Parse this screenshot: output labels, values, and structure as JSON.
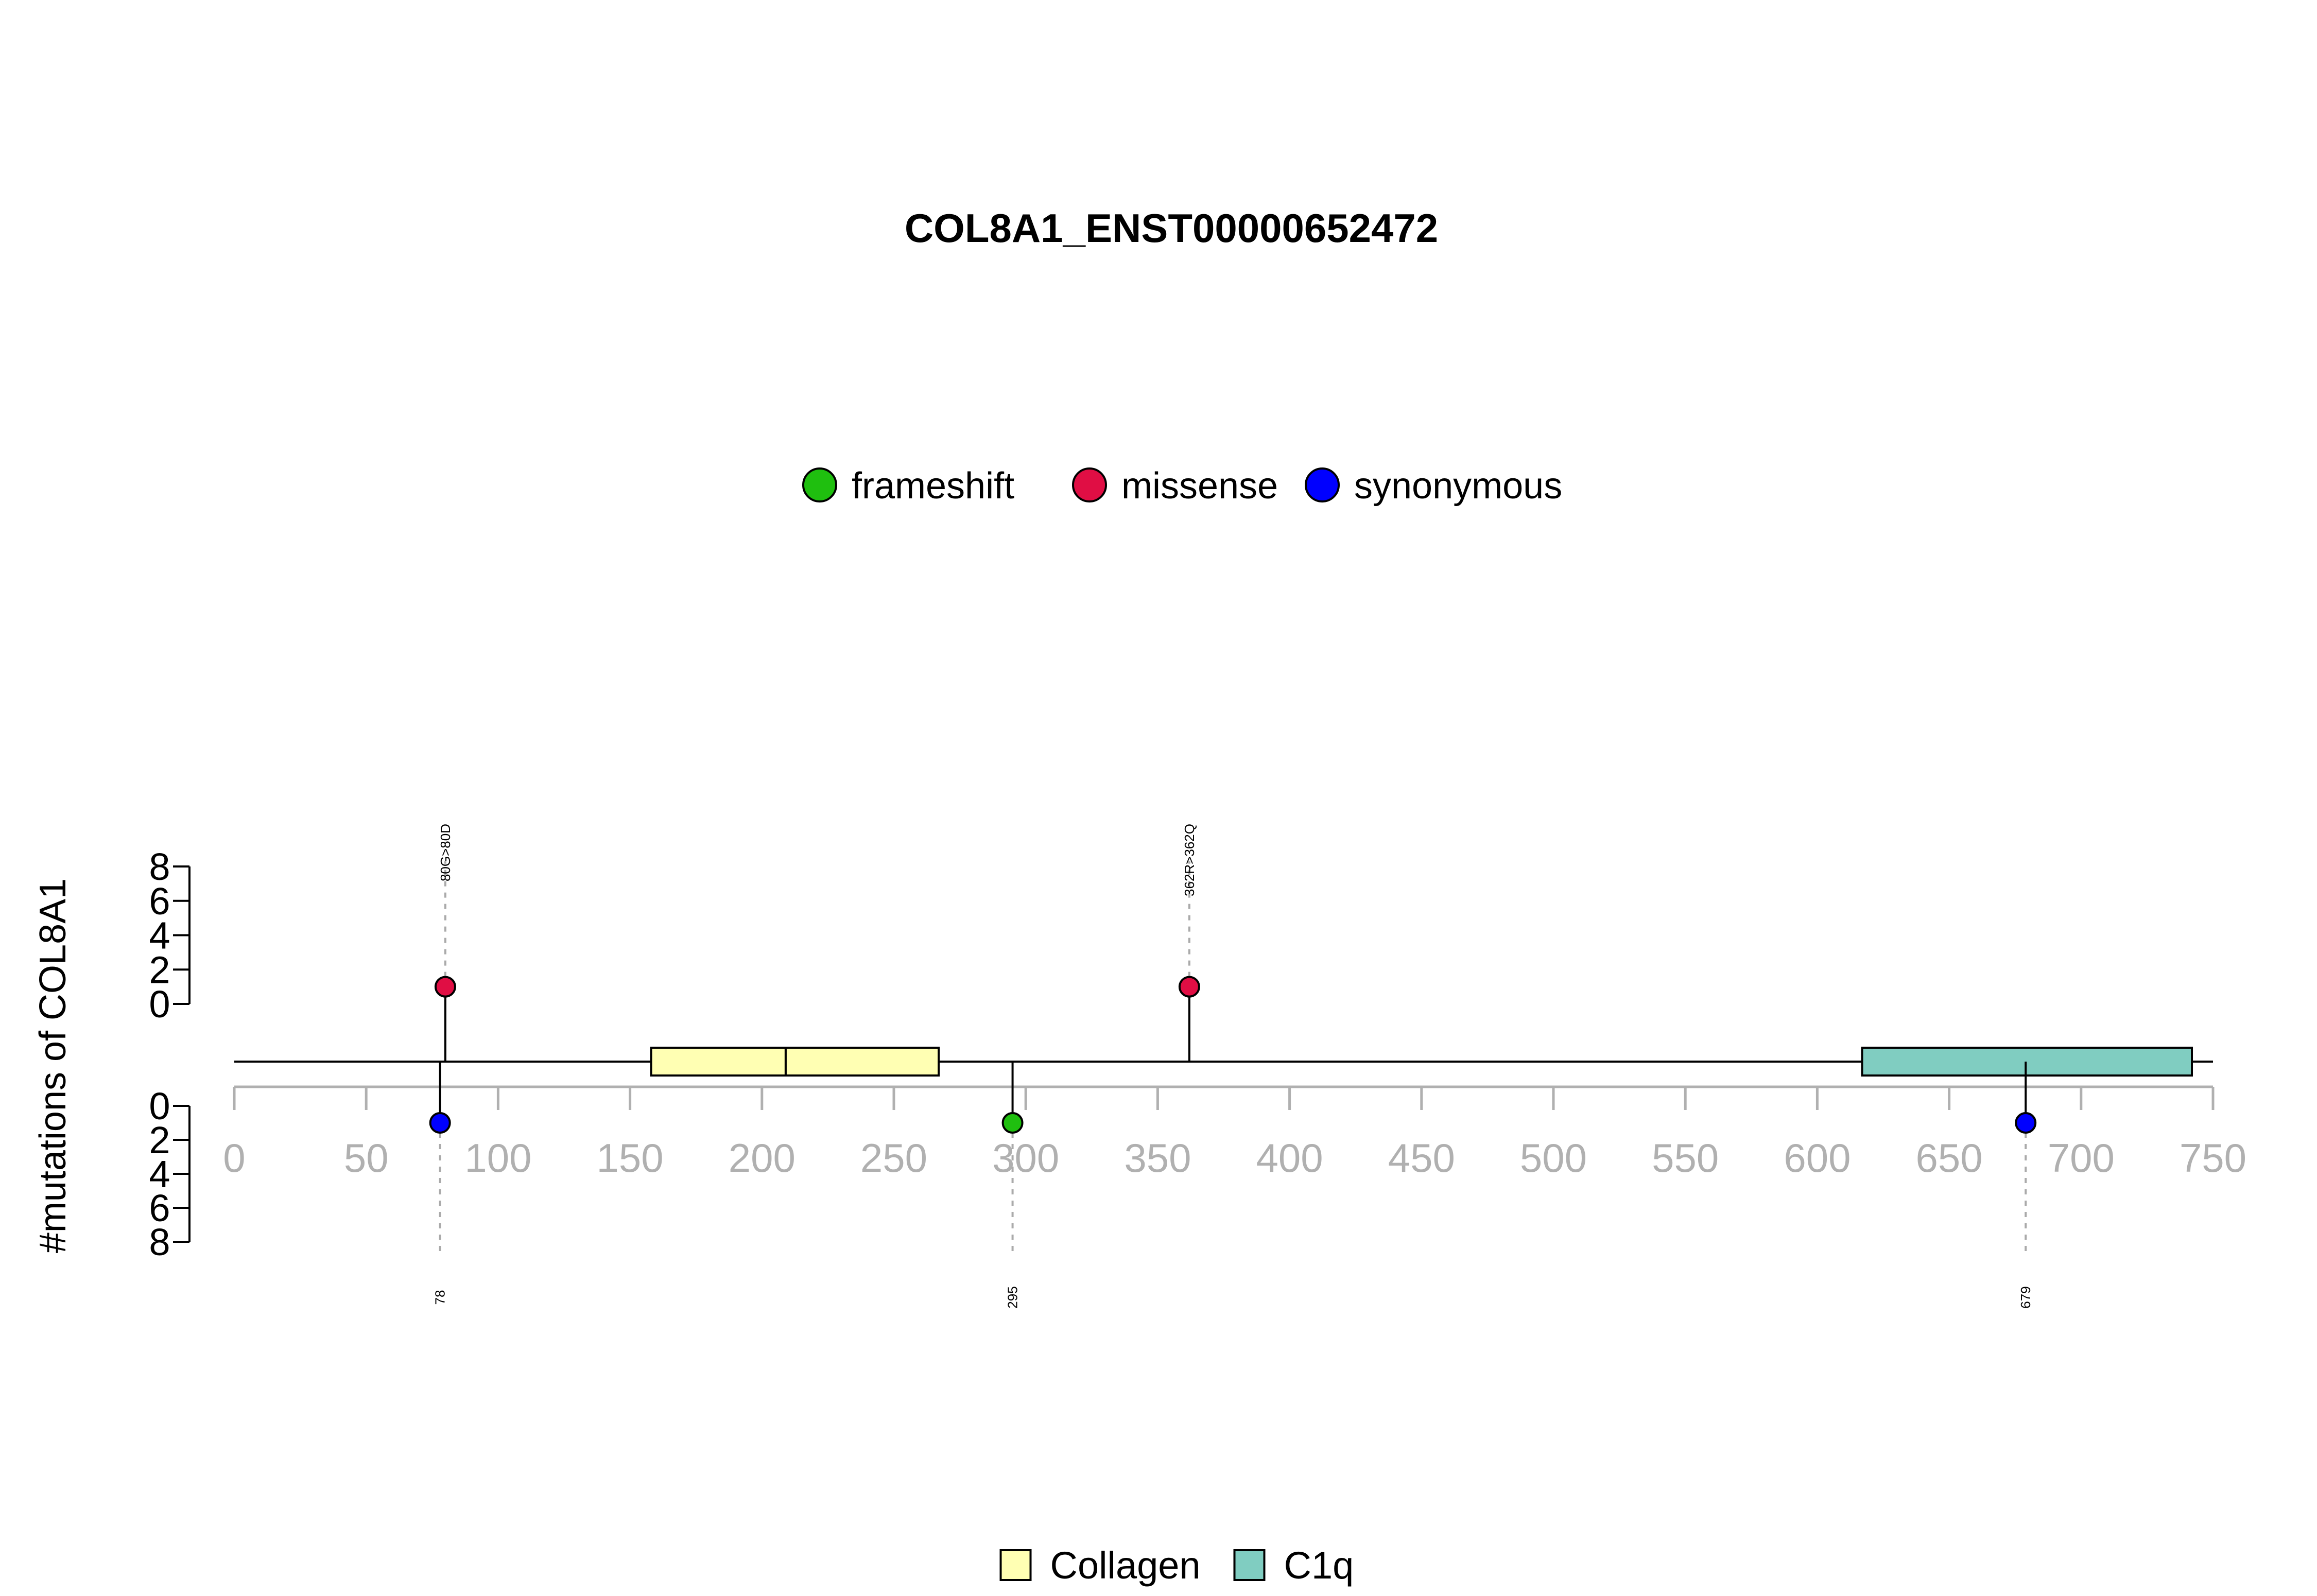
{
  "chart_data": {
    "type": "lollipop",
    "title": "COL8A1_ENST00000652472",
    "ylabel": "#mutations of COL8A1",
    "xlim": [
      0,
      750
    ],
    "x_ticks": [
      0,
      50,
      100,
      150,
      200,
      250,
      300,
      350,
      400,
      450,
      500,
      550,
      600,
      650,
      700,
      750
    ],
    "y_ticks": [
      0,
      2,
      4,
      6,
      8
    ],
    "protein_length": 750,
    "mutation_legend": [
      {
        "label": "frameshift",
        "color": "#1fbf0f"
      },
      {
        "label": "missense",
        "color": "#e00e44"
      },
      {
        "label": "synonymous",
        "color": "#0000ff"
      }
    ],
    "domain_legend": [
      {
        "label": "Collagen",
        "color": "#ffffb3"
      },
      {
        "label": "C1q",
        "color": "#80cdc1"
      }
    ],
    "domains": [
      {
        "name": "Collagen",
        "start": 158,
        "end": 209,
        "color": "#ffffb3"
      },
      {
        "name": "Collagen",
        "start": 209,
        "end": 267,
        "color": "#ffffb3"
      },
      {
        "name": "C1q",
        "start": 617,
        "end": 742,
        "color": "#80cdc1"
      }
    ],
    "mutations_top": [
      {
        "position": 80,
        "count": 1,
        "type": "missense",
        "label": "80G>80D"
      },
      {
        "position": 362,
        "count": 1,
        "type": "missense",
        "label": "362R>362Q"
      }
    ],
    "mutations_bottom": [
      {
        "position": 78,
        "count": 1,
        "type": "synonymous",
        "label": "78"
      },
      {
        "position": 295,
        "count": 1,
        "type": "frameshift",
        "label": "295"
      },
      {
        "position": 679,
        "count": 1,
        "type": "synonymous",
        "label": "679"
      }
    ]
  }
}
